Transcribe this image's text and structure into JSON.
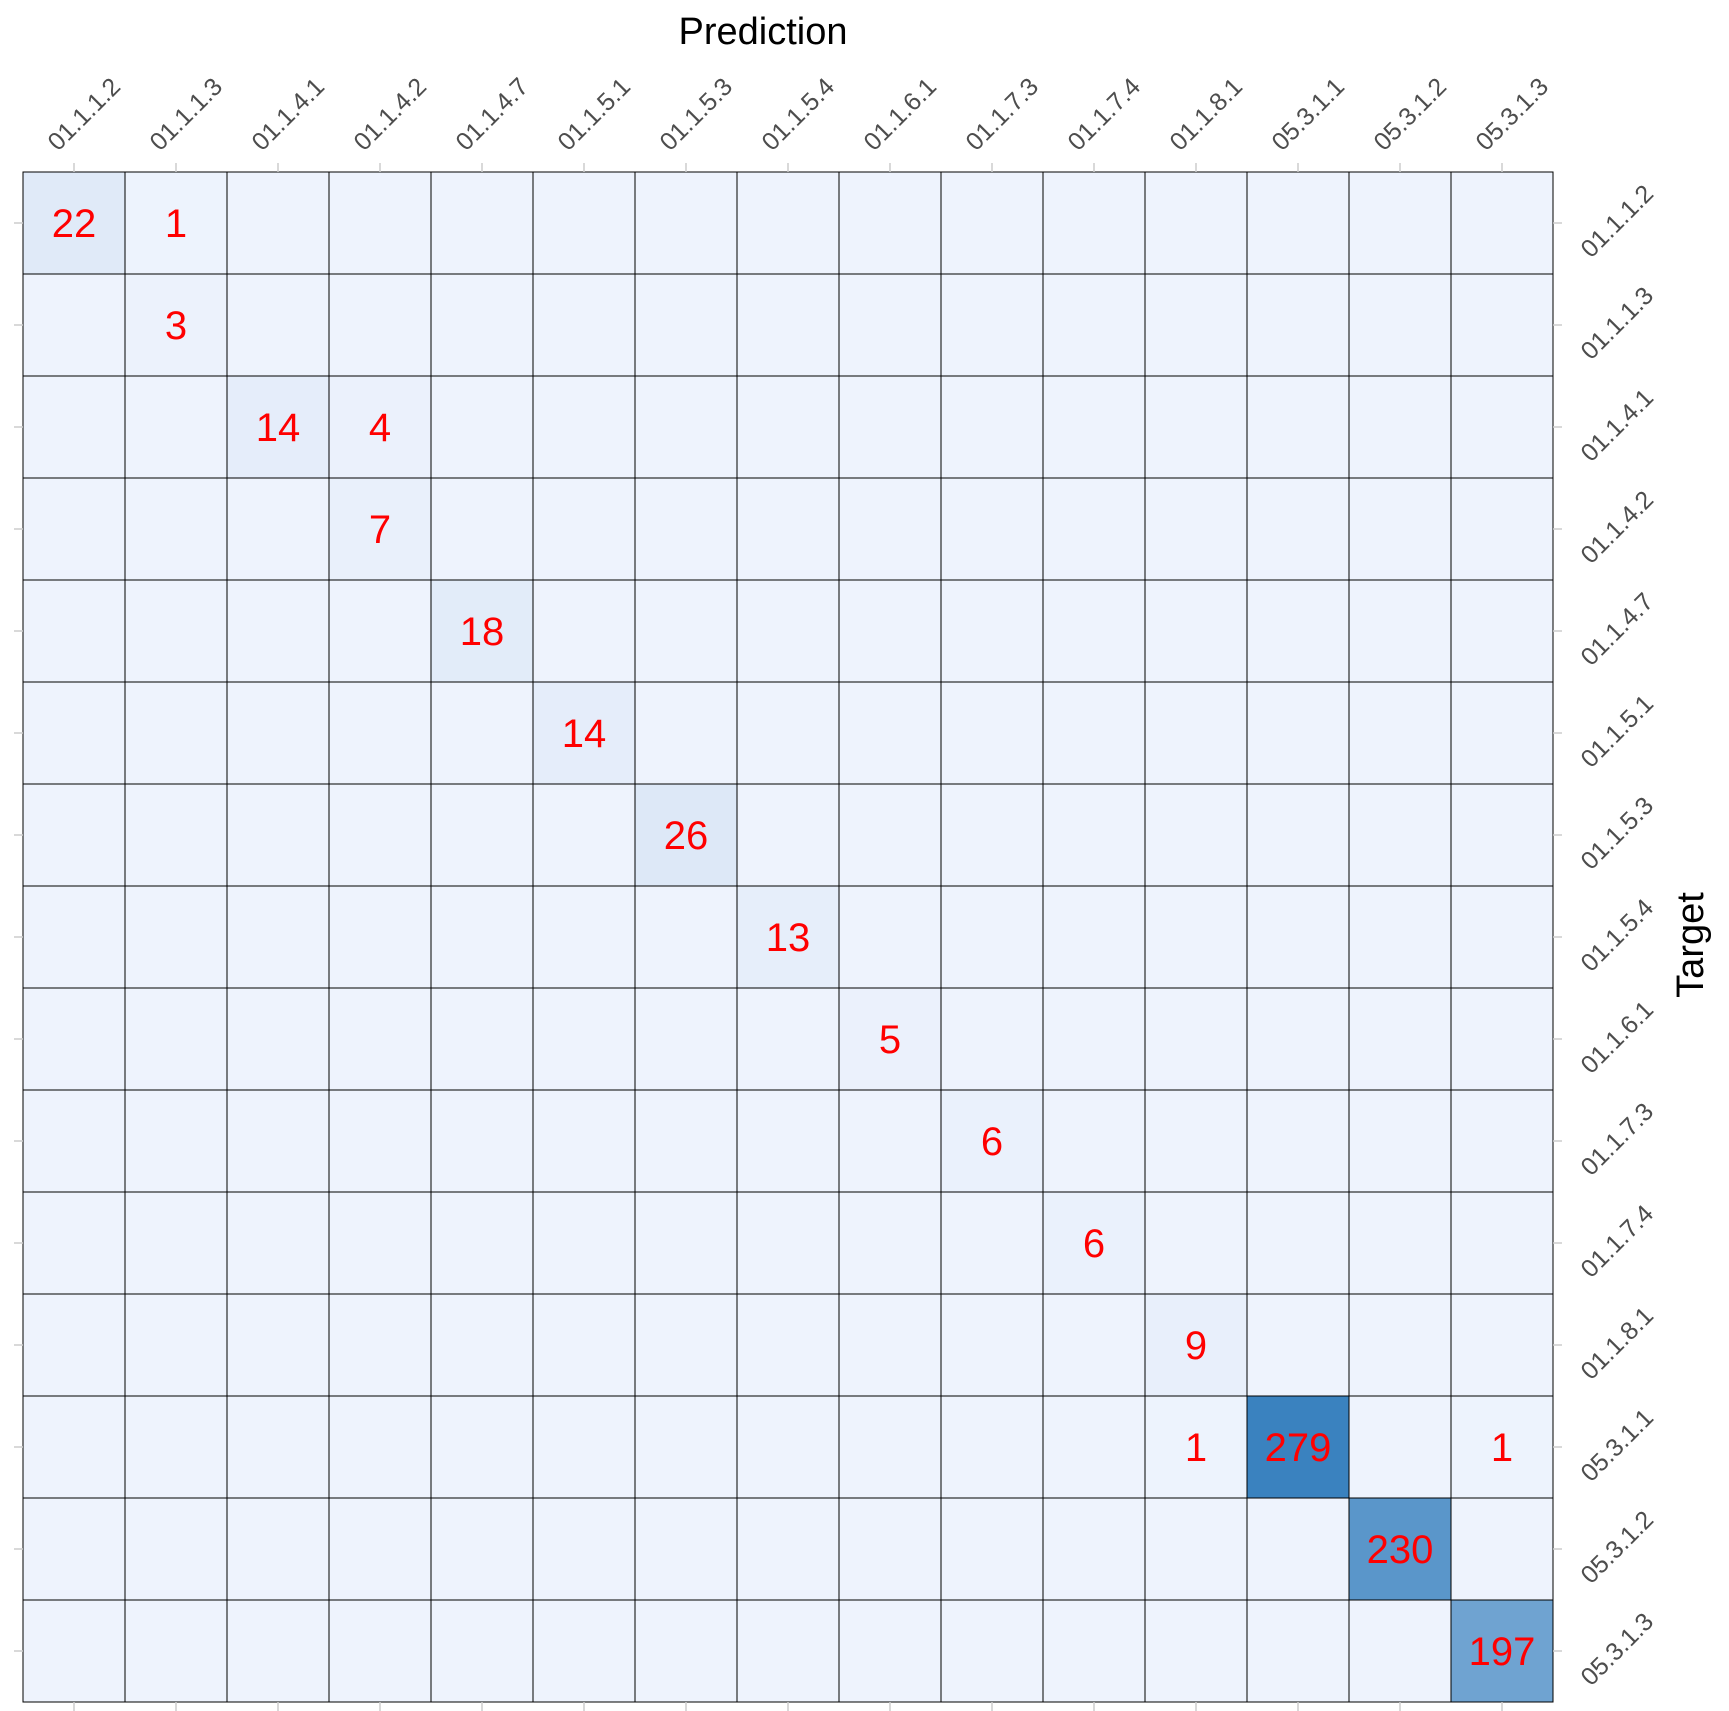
{
  "chart_data": {
    "type": "heatmap",
    "title": "",
    "xlabel": "Prediction",
    "ylabel": "Target",
    "x_categories": [
      "01.1.1.2",
      "01.1.1.3",
      "01.1.4.1",
      "01.1.4.2",
      "01.1.4.7",
      "01.1.5.1",
      "01.1.5.3",
      "01.1.5.4",
      "01.1.6.1",
      "01.1.7.3",
      "01.1.7.4",
      "01.1.8.1",
      "05.3.1.1",
      "05.3.1.2",
      "05.3.1.3"
    ],
    "y_categories": [
      "01.1.1.2",
      "01.1.1.3",
      "01.1.4.1",
      "01.1.4.2",
      "01.1.4.7",
      "01.1.5.1",
      "01.1.5.3",
      "01.1.5.4",
      "01.1.6.1",
      "01.1.7.3",
      "01.1.7.4",
      "01.1.8.1",
      "05.3.1.1",
      "05.3.1.2",
      "05.3.1.3"
    ],
    "cells": [
      {
        "target": "01.1.1.2",
        "prediction": "01.1.1.2",
        "count": 22
      },
      {
        "target": "01.1.1.2",
        "prediction": "01.1.1.3",
        "count": 1
      },
      {
        "target": "01.1.1.3",
        "prediction": "01.1.1.3",
        "count": 3
      },
      {
        "target": "01.1.4.1",
        "prediction": "01.1.4.1",
        "count": 14
      },
      {
        "target": "01.1.4.1",
        "prediction": "01.1.4.2",
        "count": 4
      },
      {
        "target": "01.1.4.2",
        "prediction": "01.1.4.2",
        "count": 7
      },
      {
        "target": "01.1.4.7",
        "prediction": "01.1.4.7",
        "count": 18
      },
      {
        "target": "01.1.5.1",
        "prediction": "01.1.5.1",
        "count": 14
      },
      {
        "target": "01.1.5.3",
        "prediction": "01.1.5.3",
        "count": 26
      },
      {
        "target": "01.1.5.4",
        "prediction": "01.1.5.4",
        "count": 13
      },
      {
        "target": "01.1.6.1",
        "prediction": "01.1.6.1",
        "count": 5
      },
      {
        "target": "01.1.7.3",
        "prediction": "01.1.7.3",
        "count": 6
      },
      {
        "target": "01.1.7.4",
        "prediction": "01.1.7.4",
        "count": 6
      },
      {
        "target": "01.1.8.1",
        "prediction": "01.1.8.1",
        "count": 9
      },
      {
        "target": "05.3.1.1",
        "prediction": "01.1.8.1",
        "count": 1
      },
      {
        "target": "05.3.1.1",
        "prediction": "05.3.1.1",
        "count": 279
      },
      {
        "target": "05.3.1.1",
        "prediction": "05.3.1.3",
        "count": 1
      },
      {
        "target": "05.3.1.2",
        "prediction": "05.3.1.2",
        "count": 230
      },
      {
        "target": "05.3.1.3",
        "prediction": "05.3.1.3",
        "count": 197
      }
    ],
    "color_low": "#eef3fd",
    "color_high": "#3a82bf",
    "label_color": "#ff0000",
    "grid_line_color": "#000000"
  }
}
